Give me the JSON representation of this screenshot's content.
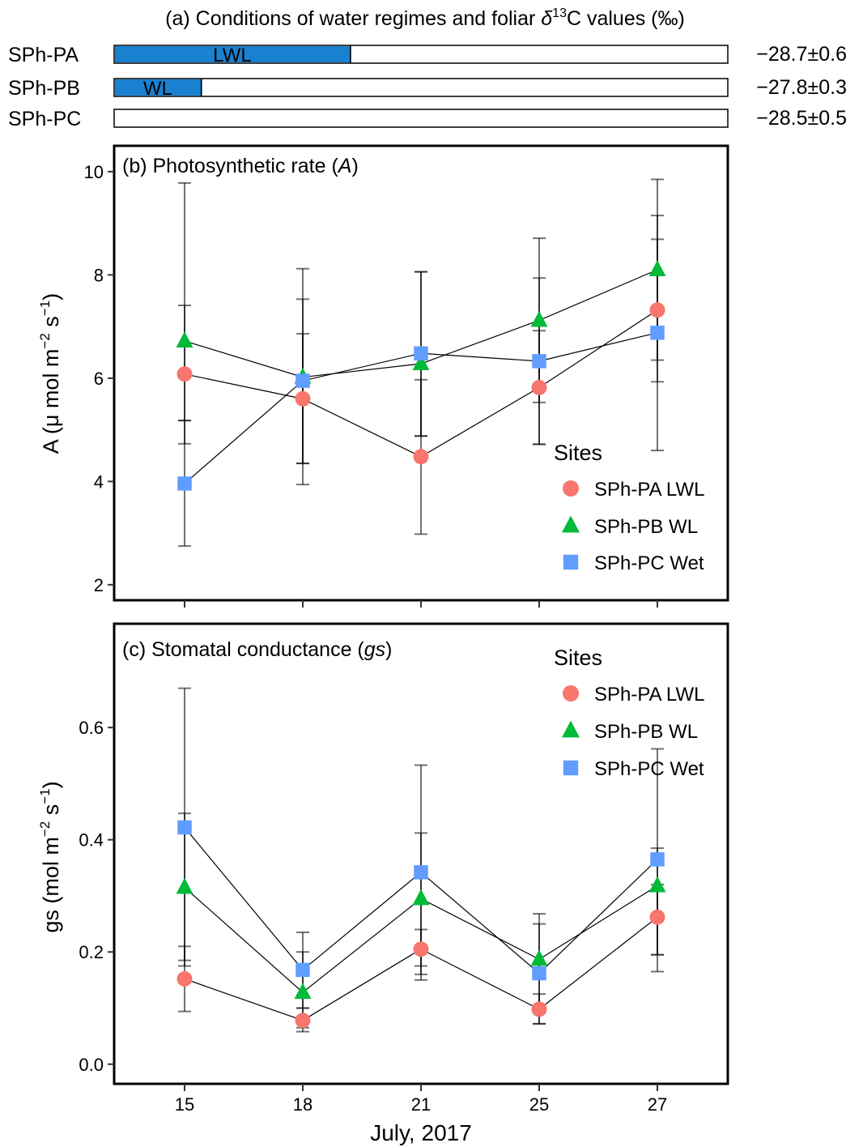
{
  "panel_a": {
    "title_prefix": "(a) Conditions of water regimes and foliar ",
    "title_delta": "δ",
    "title_sup": "13",
    "title_suffix": "C values (‰)",
    "rows": [
      {
        "site": "SPh-PA",
        "bar_label": "LWL",
        "fill_fraction": 0.385,
        "value_text": "−28.7±0.6"
      },
      {
        "site": "SPh-PB",
        "bar_label": "WL",
        "fill_fraction": 0.142,
        "value_text": "−27.8±0.3"
      },
      {
        "site": "SPh-PC",
        "bar_label": "",
        "fill_fraction": 0,
        "value_text": "−28.5±0.5"
      }
    ],
    "fill_color": "#1a81d1"
  },
  "chart_data": [
    {
      "type": "line",
      "title_text": "(b) Photosynthetic rate (",
      "title_italic": "A",
      "title_end": ")",
      "ylabel_main": "A (μ mol m",
      "ylabel_sup1": "−2",
      "ylabel_mid": " s",
      "ylabel_sup2": "−1",
      "ylabel_end": ")",
      "x": [
        "15",
        "18",
        "21",
        "25",
        "27"
      ],
      "ylim": [
        1.7,
        10.5
      ],
      "yticks": [
        "2",
        "4",
        "6",
        "8",
        "10"
      ],
      "legend_title": "Sites",
      "legend_position": "bottom-right",
      "series": [
        {
          "name": "SPh-PA LWL",
          "marker": "circle",
          "color": "#f8766d",
          "values": [
            6.08,
            5.6,
            4.48,
            5.82,
            7.32
          ],
          "err_low": [
            4.73,
            4.35,
            2.98,
            4.72,
            5.93
          ],
          "err_high": [
            7.41,
            6.86,
            5.97,
            6.92,
            8.69
          ]
        },
        {
          "name": "SPh-PB WL",
          "marker": "triangle",
          "color": "#00ba38",
          "values": [
            6.72,
            6.02,
            6.28,
            7.12,
            8.1
          ],
          "err_low": [
            5.18,
            3.94,
            4.88,
            5.53,
            6.35
          ],
          "err_high": [
            9.78,
            8.12,
            8.06,
            8.71,
            9.85
          ]
        },
        {
          "name": "SPh-PC Wet",
          "marker": "square",
          "color": "#619cff",
          "values": [
            3.96,
            5.95,
            6.48,
            6.33,
            6.88
          ],
          "err_low": [
            2.75,
            4.35,
            4.88,
            4.72,
            4.6
          ],
          "err_high": [
            5.18,
            7.53,
            8.06,
            7.94,
            9.15
          ]
        }
      ]
    },
    {
      "type": "line",
      "title_text": "(c) Stomatal conductance (",
      "title_italic": "gs",
      "title_end": ")",
      "ylabel_main": "gs (mol m",
      "ylabel_sup1": "−2",
      "ylabel_mid": " s",
      "ylabel_sup2": "−1",
      "ylabel_end": ")",
      "xlabel": "July, 2017",
      "x": [
        "15",
        "18",
        "21",
        "25",
        "27"
      ],
      "ylim": [
        -0.035,
        0.785
      ],
      "yticks": [
        "0.0",
        "0.2",
        "0.4",
        "0.6"
      ],
      "legend_title": "Sites",
      "legend_position": "top-right",
      "series": [
        {
          "name": "SPh-PA LWL",
          "marker": "circle",
          "color": "#f8766d",
          "values": [
            0.152,
            0.078,
            0.205,
            0.098,
            0.262
          ],
          "err_low": [
            0.094,
            0.058,
            0.15,
            0.072,
            0.195
          ],
          "err_high": [
            0.21,
            0.1,
            0.24,
            0.125,
            0.32
          ]
        },
        {
          "name": "SPh-PB WL",
          "marker": "triangle",
          "color": "#00ba38",
          "values": [
            0.315,
            0.128,
            0.295,
            0.187,
            0.318
          ],
          "err_low": [
            0.185,
            0.065,
            0.175,
            0.1,
            0.165
          ],
          "err_high": [
            0.447,
            0.2,
            0.412,
            0.268,
            0.385
          ]
        },
        {
          "name": "SPh-PC Wet",
          "marker": "square",
          "color": "#619cff",
          "values": [
            0.422,
            0.168,
            0.342,
            0.162,
            0.365
          ],
          "err_low": [
            0.175,
            0.1,
            0.16,
            0.072,
            0.195
          ],
          "err_high": [
            0.67,
            0.235,
            0.533,
            0.25,
            0.562
          ]
        }
      ]
    }
  ]
}
